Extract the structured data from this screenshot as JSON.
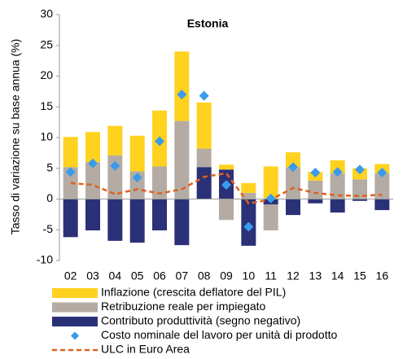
{
  "chart_data": {
    "type": "bar",
    "title": "Estonia",
    "y_label": "Tasso di variazione su base annua (%)",
    "categories": [
      "02",
      "03",
      "04",
      "05",
      "06",
      "07",
      "08",
      "09",
      "10",
      "11",
      "12",
      "13",
      "14",
      "15",
      "16"
    ],
    "ylim": [
      -10,
      30
    ],
    "yticks": [
      -10,
      -5,
      0,
      5,
      10,
      15,
      20,
      25,
      30
    ],
    "grid": false,
    "series": [
      {
        "name": "Inflazione (crescita deflatore del PIL)",
        "color": "#ffd21f",
        "kind": "bar",
        "values": [
          4.9,
          4.9,
          4.8,
          5.8,
          9.1,
          11.3,
          7.5,
          0.8,
          1.6,
          5.3,
          2.4,
          1.4,
          2.1,
          1.8,
          1.5
        ]
      },
      {
        "name": "Retribuzione reale per impiegato",
        "color": "#b4aca4",
        "kind": "bar",
        "values": [
          5.2,
          6.0,
          7.1,
          4.5,
          5.3,
          12.7,
          3.0,
          -3.4,
          1.0,
          -4.2,
          5.2,
          3.0,
          4.2,
          3.2,
          4.2
        ]
      },
      {
        "name": "Contributo produttività (segno negativo)",
        "color": "#2b3177",
        "kind": "bar",
        "values": [
          -6.2,
          -5.1,
          -6.8,
          -7.1,
          -5.1,
          -7.5,
          5.2,
          4.8,
          -7.6,
          -0.9,
          -2.6,
          -0.7,
          -2.2,
          -0.3,
          -1.8
        ]
      },
      {
        "name": "Costo nominale del lavoro per unità di prodotto",
        "color": "#3a9bea",
        "kind": "diamond",
        "values": [
          4.4,
          5.8,
          5.4,
          3.5,
          9.4,
          17.0,
          16.8,
          2.3,
          -4.5,
          0.1,
          5.2,
          4.3,
          4.4,
          4.8,
          4.3
        ]
      },
      {
        "name": "ULC in Euro Area",
        "color": "#e0601f",
        "kind": "dashed-line",
        "values": [
          2.6,
          2.3,
          0.8,
          1.6,
          0.9,
          1.6,
          3.6,
          4.2,
          -0.7,
          -0.1,
          1.8,
          1.0,
          0.6,
          0.5,
          0.7
        ]
      }
    ]
  }
}
